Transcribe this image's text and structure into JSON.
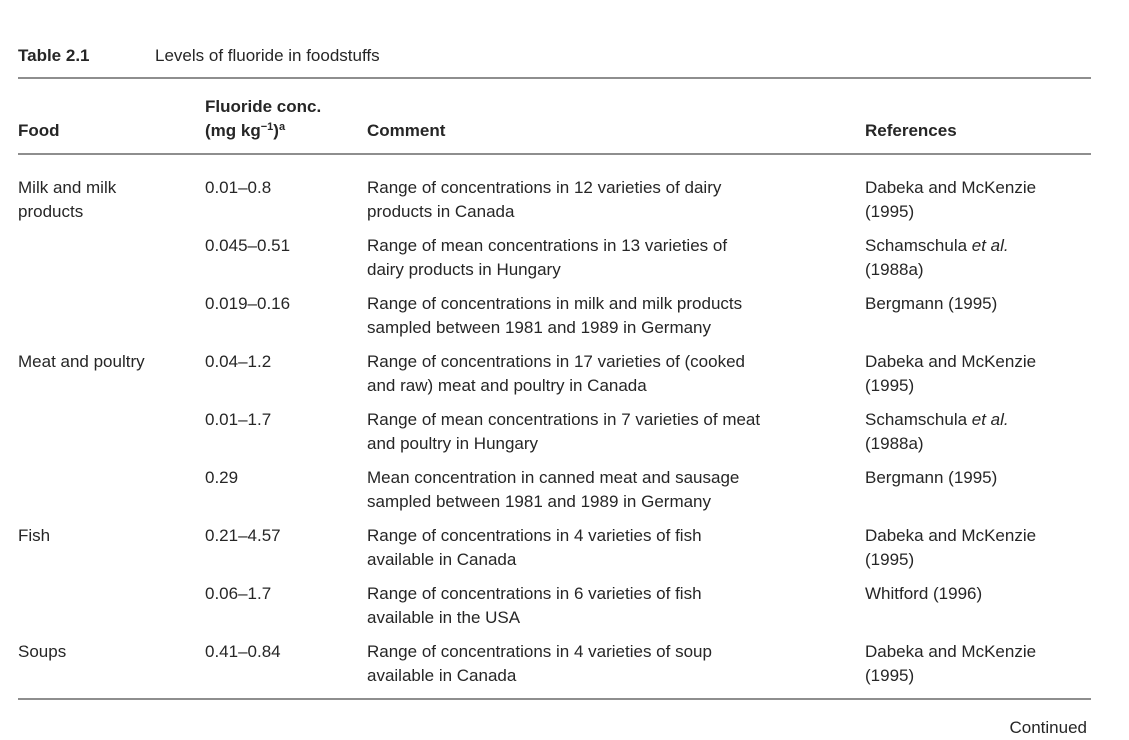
{
  "page": {
    "title_label": "Table 2.1",
    "title_caption": "Levels of fluoride in foodstuffs",
    "continued_label": "Continued",
    "background": "#ffffff",
    "text_color": "#262626",
    "rule_color": "#8e8e8e"
  },
  "table": {
    "headers": {
      "food": "Food",
      "conc_line1": "Fluoride conc.",
      "conc_unit_pre": "(mg kg",
      "conc_unit_sup": "−1",
      "conc_unit_close": ")",
      "conc_footnote": "a",
      "comment": "Comment",
      "references": "References"
    },
    "rows": [
      {
        "food_lines": [
          "Milk and milk",
          "products"
        ],
        "conc": "0.01–0.8",
        "comment_lines": [
          "Range of concentrations in 12 varieties of dairy",
          "products in Canada"
        ],
        "reference_lines": [
          [
            {
              "t": "Dabeka and McKenzie",
              "i": false
            }
          ],
          [
            {
              "t": "(1995)",
              "i": false
            }
          ]
        ]
      },
      {
        "food_lines": [],
        "conc": "0.045–0.51",
        "comment_lines": [
          "Range of mean concentrations in 13 varieties of",
          "dairy products in Hungary"
        ],
        "reference_lines": [
          [
            {
              "t": "Schamschula ",
              "i": false
            },
            {
              "t": "et al.",
              "i": true
            }
          ],
          [
            {
              "t": "(1988a)",
              "i": false
            }
          ]
        ]
      },
      {
        "food_lines": [],
        "conc": "0.019–0.16",
        "comment_lines": [
          "Range of concentrations in milk and milk products",
          "sampled between 1981 and 1989 in Germany"
        ],
        "reference_lines": [
          [
            {
              "t": "Bergmann (1995)",
              "i": false
            }
          ]
        ]
      },
      {
        "food_lines": [
          "Meat and poultry"
        ],
        "conc": "0.04–1.2",
        "comment_lines": [
          "Range of concentrations in 17 varieties of (cooked",
          "and raw) meat and poultry in Canada"
        ],
        "reference_lines": [
          [
            {
              "t": "Dabeka and McKenzie",
              "i": false
            }
          ],
          [
            {
              "t": "(1995)",
              "i": false
            }
          ]
        ]
      },
      {
        "food_lines": [],
        "conc": "0.01–1.7",
        "comment_lines": [
          "Range of mean concentrations in 7 varieties of meat",
          "and poultry in Hungary"
        ],
        "reference_lines": [
          [
            {
              "t": "Schamschula ",
              "i": false
            },
            {
              "t": "et al.",
              "i": true
            }
          ],
          [
            {
              "t": "(1988a)",
              "i": false
            }
          ]
        ]
      },
      {
        "food_lines": [],
        "conc": "0.29",
        "comment_lines": [
          "Mean concentration in canned meat and sausage",
          "sampled between 1981 and 1989 in Germany"
        ],
        "reference_lines": [
          [
            {
              "t": "Bergmann (1995)",
              "i": false
            }
          ]
        ]
      },
      {
        "food_lines": [
          "Fish"
        ],
        "conc": "0.21–4.57",
        "comment_lines": [
          "Range of concentrations in 4 varieties of fish",
          "available in Canada"
        ],
        "reference_lines": [
          [
            {
              "t": "Dabeka and McKenzie",
              "i": false
            }
          ],
          [
            {
              "t": "(1995)",
              "i": false
            }
          ]
        ]
      },
      {
        "food_lines": [],
        "conc": "0.06–1.7",
        "comment_lines": [
          "Range of concentrations in 6 varieties of fish",
          "available in the USA"
        ],
        "reference_lines": [
          [
            {
              "t": "Whitford (1996)",
              "i": false
            }
          ]
        ]
      },
      {
        "food_lines": [
          "Soups"
        ],
        "conc": "0.41–0.84",
        "comment_lines": [
          "Range of concentrations in 4 varieties of soup",
          "available in Canada"
        ],
        "reference_lines": [
          [
            {
              "t": "Dabeka and McKenzie",
              "i": false
            }
          ],
          [
            {
              "t": "(1995)",
              "i": false
            }
          ]
        ]
      }
    ]
  }
}
